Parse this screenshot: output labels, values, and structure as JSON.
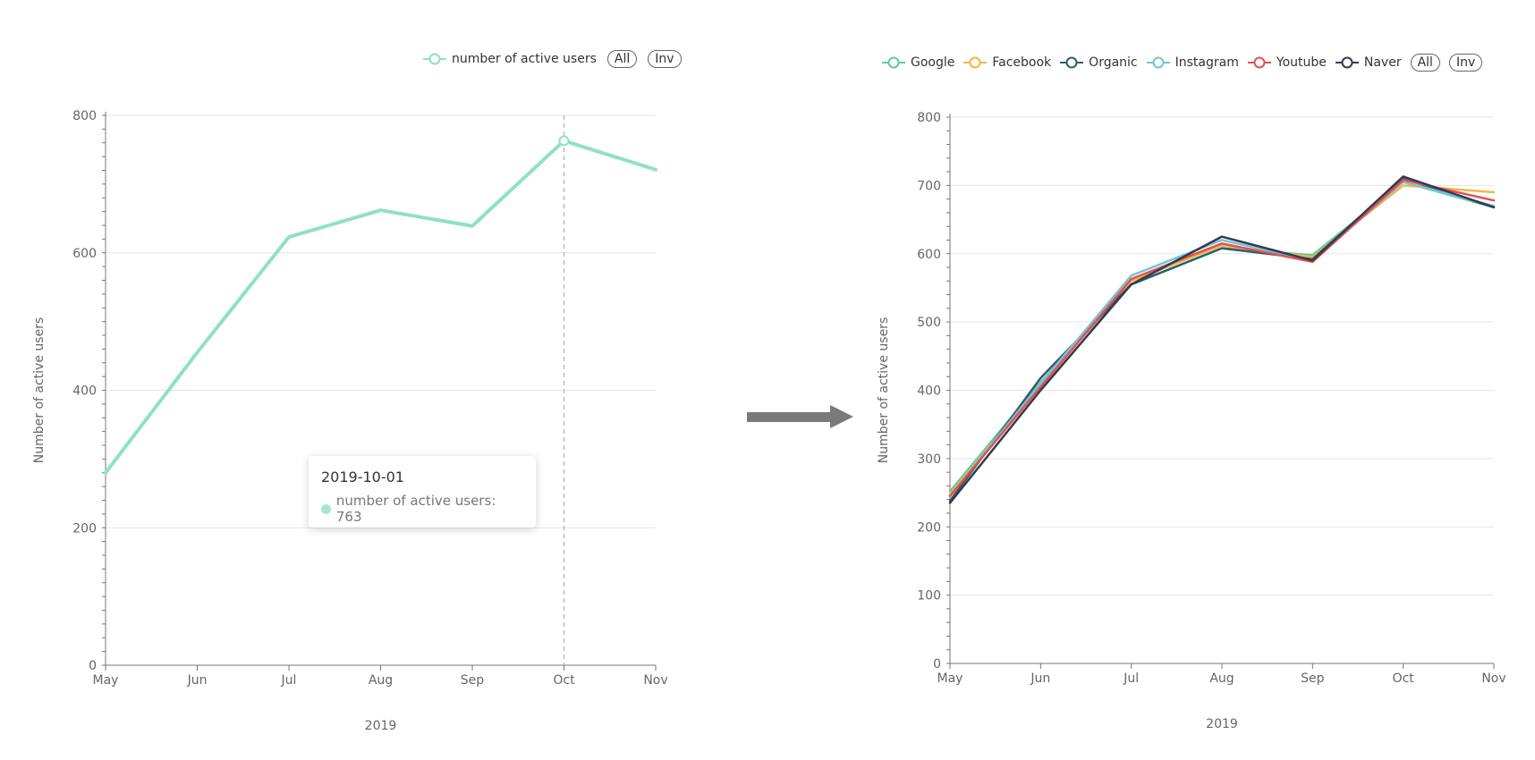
{
  "chart_data": [
    {
      "type": "line",
      "x": [
        "May",
        "Jun",
        "Jul",
        "Aug",
        "Sep",
        "Oct",
        "Nov"
      ],
      "xlabel": "2019",
      "ylabel": "Number of active users",
      "ylim": [
        0,
        800
      ],
      "yticks": [
        0,
        200,
        400,
        600,
        800
      ],
      "grid": true,
      "legend_position": "top-right",
      "series": [
        {
          "name": "number of active users",
          "color": "#8fe0c6",
          "values": [
            280,
            455,
            623,
            662,
            639,
            763,
            721
          ]
        }
      ],
      "tooltip": {
        "date": "2019-10-01",
        "label": "number of active users: 763"
      },
      "highlight_index": 5
    },
    {
      "type": "line",
      "x": [
        "May",
        "Jun",
        "Jul",
        "Aug",
        "Sep",
        "Oct",
        "Nov"
      ],
      "xlabel": "2019",
      "ylabel": "Number of active users",
      "ylim": [
        0,
        800
      ],
      "yticks": [
        0,
        100,
        200,
        300,
        400,
        500,
        600,
        700,
        800
      ],
      "grid": true,
      "legend_position": "top-right",
      "series": [
        {
          "name": "Google",
          "color": "#63c9a1",
          "values": [
            252,
            412,
            555,
            608,
            598,
            705,
            668
          ]
        },
        {
          "name": "Facebook",
          "color": "#f0b84a",
          "values": [
            248,
            408,
            560,
            612,
            595,
            700,
            690
          ]
        },
        {
          "name": "Organic",
          "color": "#2f5e6b",
          "values": [
            238,
            418,
            555,
            608,
            592,
            710,
            668
          ]
        },
        {
          "name": "Instagram",
          "color": "#76c3dc",
          "values": [
            245,
            410,
            568,
            620,
            590,
            705,
            670
          ]
        },
        {
          "name": "Youtube",
          "color": "#e35050",
          "values": [
            245,
            405,
            563,
            615,
            588,
            708,
            678
          ]
        },
        {
          "name": "Naver",
          "color": "#343a4f",
          "values": [
            235,
            400,
            555,
            625,
            590,
            713,
            668
          ]
        }
      ]
    }
  ],
  "legend_buttons": {
    "all": "All",
    "inv": "Inv"
  },
  "colors": {
    "axis": "#777777",
    "grid": "#e3e3ef",
    "arrow": "#7a7a7a",
    "guide": "#bbbbbb"
  }
}
